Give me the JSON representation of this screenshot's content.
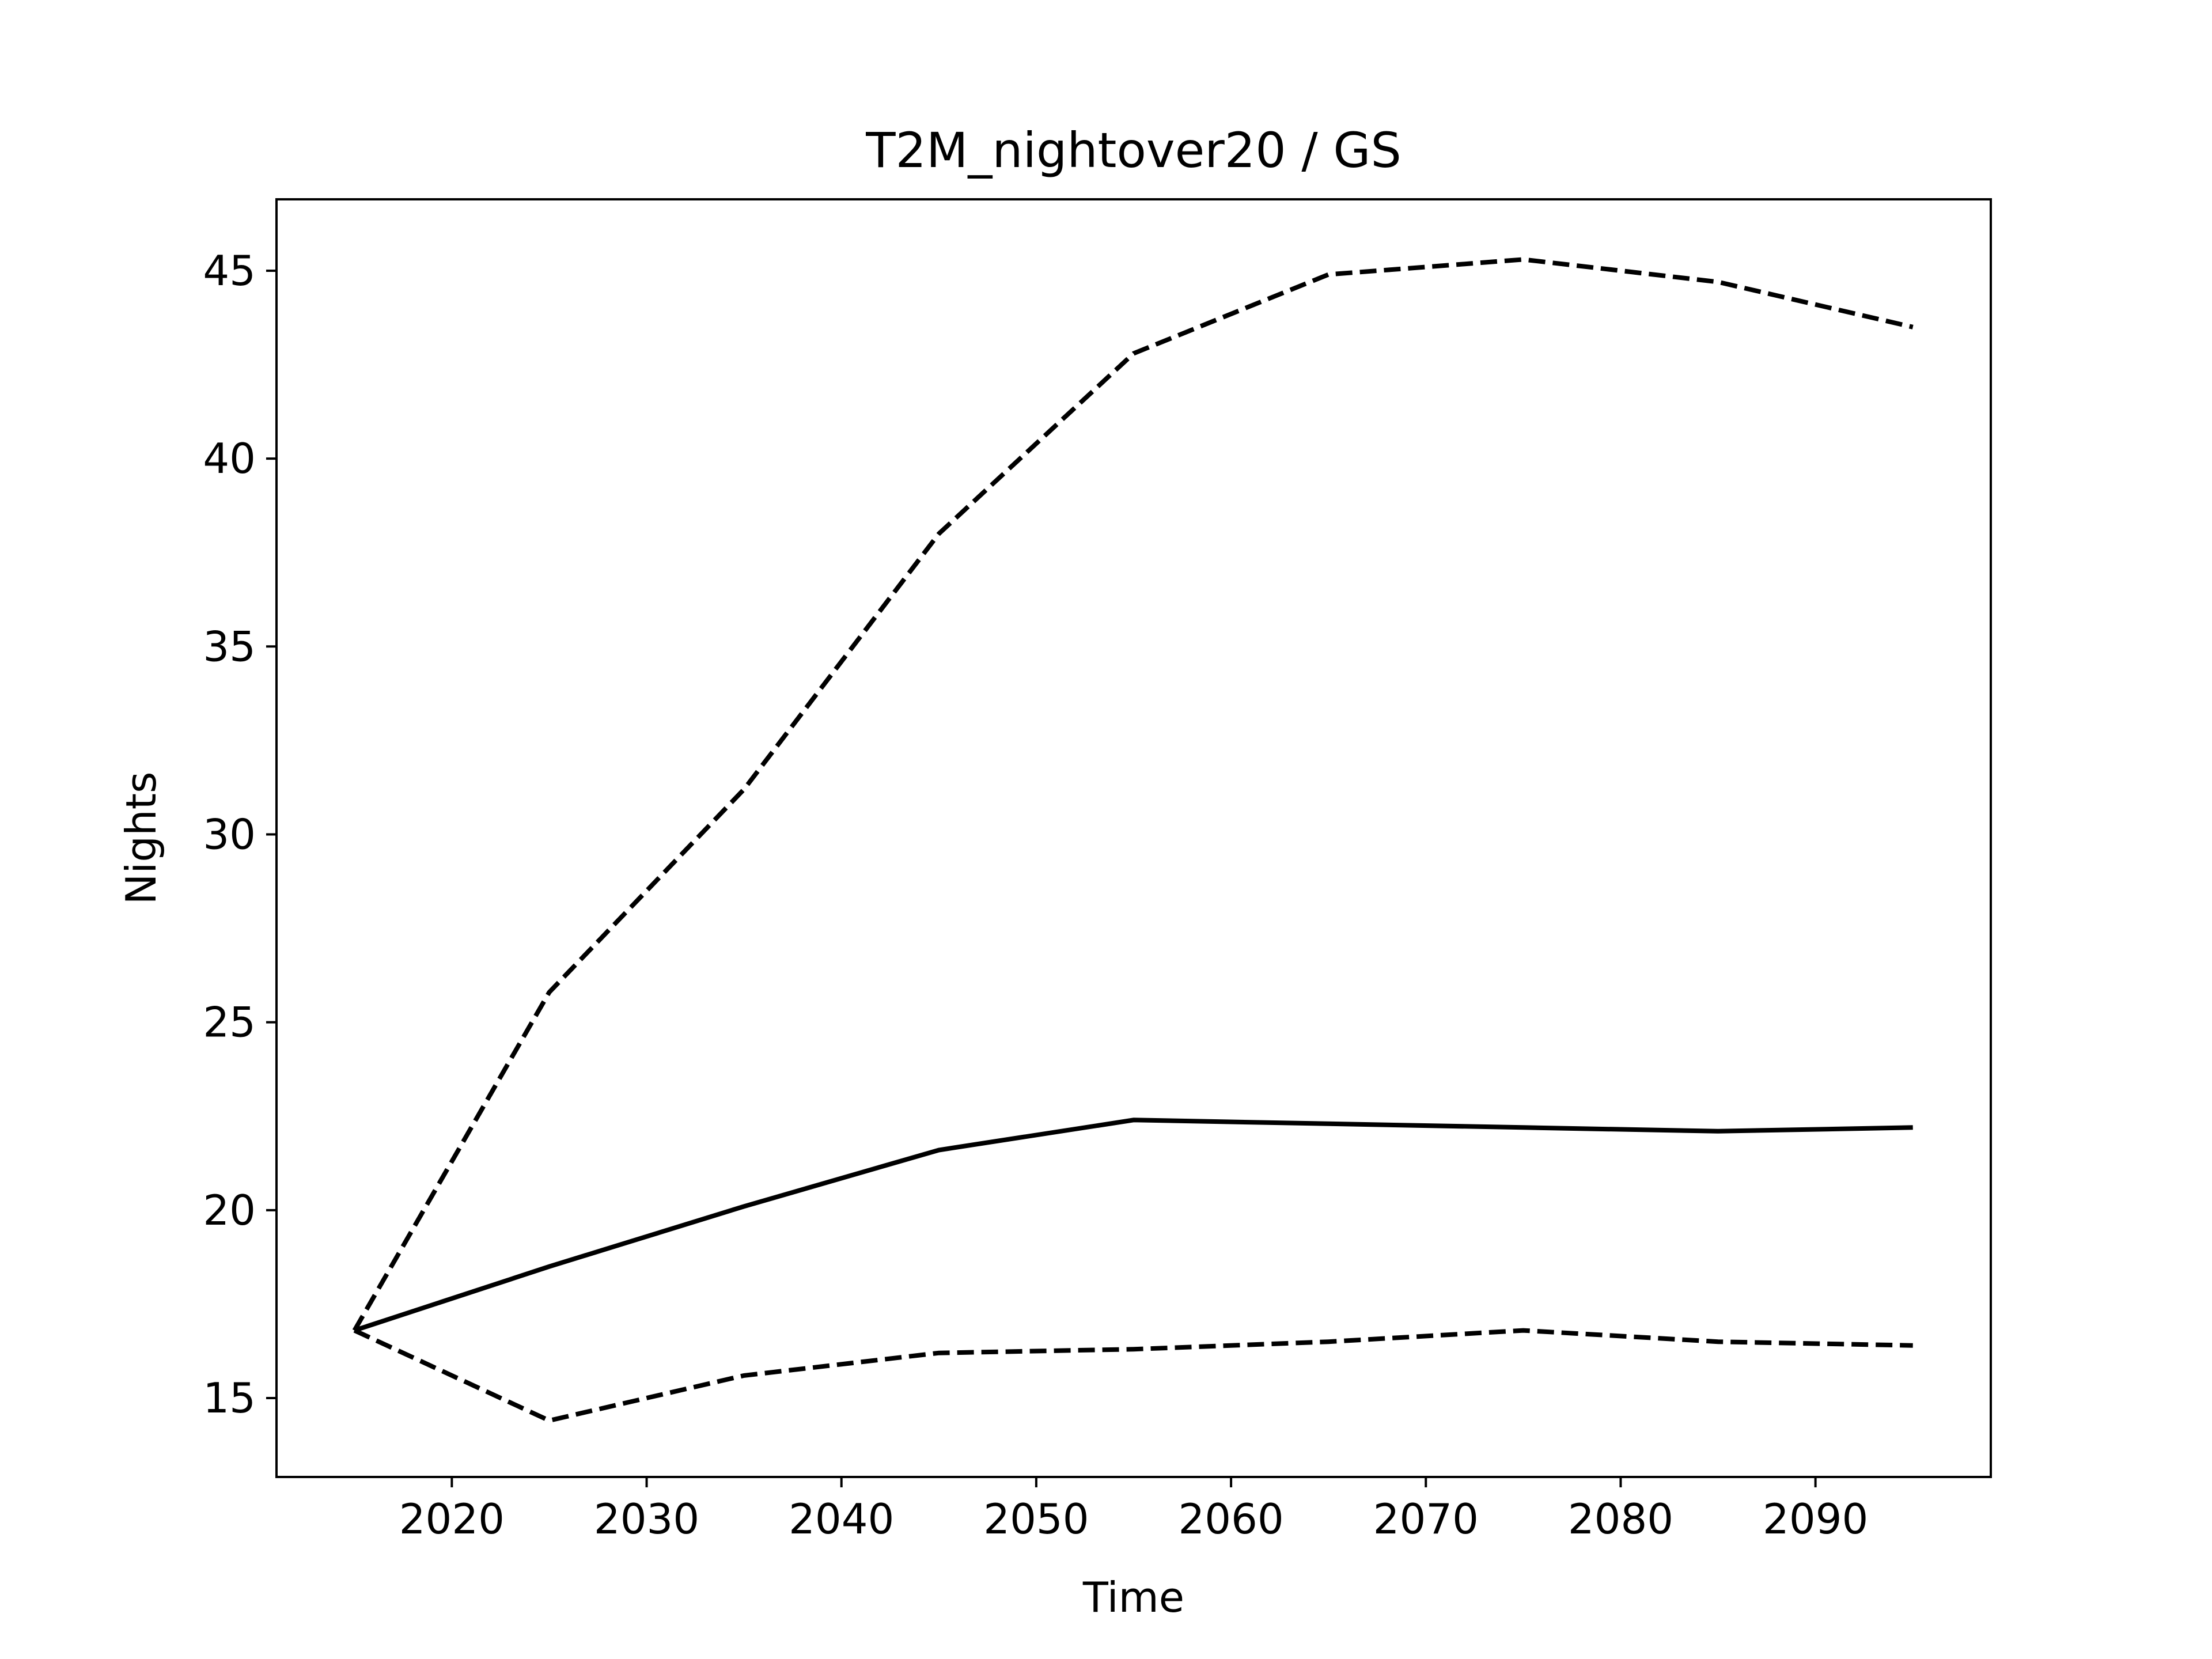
{
  "chart_data": {
    "type": "line",
    "title": "T2M_nightover20 / GS",
    "xlabel": "Time",
    "ylabel": "Nights",
    "x": [
      2015,
      2025,
      2035,
      2045,
      2055,
      2065,
      2075,
      2085,
      2095
    ],
    "xlim": [
      2011,
      2099
    ],
    "ylim": [
      12.9,
      46.9
    ],
    "xticks": [
      2020,
      2030,
      2040,
      2050,
      2060,
      2070,
      2080,
      2090
    ],
    "yticks": [
      15,
      20,
      25,
      30,
      35,
      40,
      45
    ],
    "grid": false,
    "legend": "none",
    "series": [
      {
        "style": "dashed",
        "color": "#000000",
        "values": [
          16.8,
          25.8,
          31.2,
          38.0,
          42.8,
          44.9,
          45.3,
          44.7,
          43.5
        ]
      },
      {
        "style": "solid",
        "color": "#000000",
        "values": [
          16.8,
          18.5,
          20.1,
          21.6,
          22.4,
          22.3,
          22.2,
          22.1,
          22.2
        ]
      },
      {
        "style": "dashed",
        "color": "#000000",
        "values": [
          16.8,
          14.4,
          15.6,
          16.2,
          16.3,
          16.5,
          16.8,
          16.5,
          16.4
        ]
      }
    ]
  }
}
